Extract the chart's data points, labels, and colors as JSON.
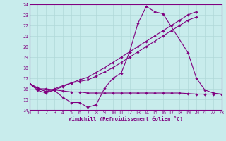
{
  "xlabel": "Windchill (Refroidissement éolien,°C)",
  "xlim": [
    0,
    23
  ],
  "ylim": [
    14,
    24
  ],
  "yticks": [
    14,
    15,
    16,
    17,
    18,
    19,
    20,
    21,
    22,
    23,
    24
  ],
  "xticks": [
    0,
    1,
    2,
    3,
    4,
    5,
    6,
    7,
    8,
    9,
    10,
    11,
    12,
    13,
    14,
    15,
    16,
    17,
    18,
    19,
    20,
    21,
    22,
    23
  ],
  "bg_color": "#c8ecec",
  "line_color": "#800080",
  "grid_color": "#b0d8d8",
  "lines": [
    {
      "x": [
        0,
        1,
        2,
        3,
        4,
        5,
        6,
        7,
        8,
        9,
        10,
        11,
        12,
        13,
        14,
        15,
        16,
        19,
        20,
        21,
        22,
        23
      ],
      "y": [
        16.5,
        16.1,
        15.75,
        15.85,
        15.2,
        14.7,
        14.7,
        14.25,
        14.5,
        16.05,
        17.0,
        17.5,
        19.5,
        22.2,
        23.8,
        23.3,
        23.1,
        19.4,
        17.0,
        15.9,
        15.6,
        15.5
      ]
    },
    {
      "x": [
        0,
        1,
        2,
        3,
        4,
        5,
        6,
        7,
        8,
        9,
        10,
        11,
        12,
        13,
        14,
        15,
        16,
        17,
        18,
        19,
        20
      ],
      "y": [
        16.5,
        16.0,
        15.75,
        16.0,
        16.3,
        16.55,
        16.7,
        16.85,
        17.2,
        17.6,
        18.0,
        18.5,
        19.0,
        19.5,
        20.0,
        20.5,
        21.0,
        21.5,
        22.0,
        22.5,
        22.8
      ]
    },
    {
      "x": [
        0,
        1,
        2,
        3,
        4,
        5,
        6,
        7,
        8,
        9,
        10,
        11,
        12,
        13,
        14,
        15,
        16,
        17,
        18,
        19,
        20
      ],
      "y": [
        16.5,
        15.85,
        15.6,
        15.9,
        16.2,
        16.55,
        16.85,
        17.1,
        17.55,
        18.0,
        18.5,
        19.0,
        19.5,
        20.0,
        20.5,
        21.0,
        21.5,
        22.0,
        22.5,
        23.0,
        23.3
      ]
    },
    {
      "x": [
        0,
        1,
        2,
        3,
        4,
        5,
        6,
        7,
        8,
        9,
        10,
        11,
        12,
        13,
        14,
        15,
        16,
        17,
        18,
        19,
        20,
        21,
        22,
        23
      ],
      "y": [
        16.5,
        16.0,
        16.0,
        15.9,
        15.8,
        15.7,
        15.7,
        15.6,
        15.6,
        15.6,
        15.6,
        15.6,
        15.6,
        15.6,
        15.6,
        15.6,
        15.6,
        15.6,
        15.6,
        15.55,
        15.5,
        15.5,
        15.5,
        15.5
      ]
    }
  ]
}
